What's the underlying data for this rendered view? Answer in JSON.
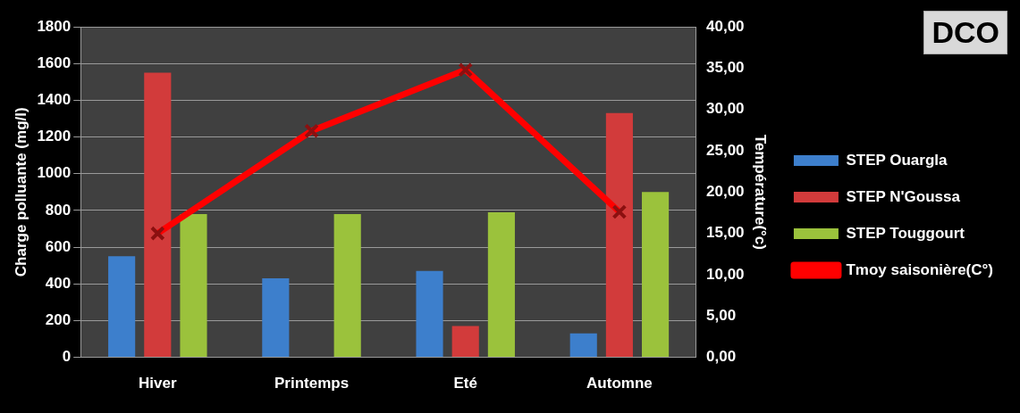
{
  "chart_data": {
    "type": "bar",
    "title": "DCO",
    "ylabel": "Charge polluante (mg/l)",
    "y2label": "Température(°c)",
    "categories": [
      "Hiver",
      "Printemps",
      "Eté",
      "Automne"
    ],
    "series": [
      {
        "name": "STEP Ouargla",
        "color": "#3d7fcc",
        "values": [
          550,
          430,
          470,
          130
        ]
      },
      {
        "name": "STEP N'Goussa",
        "color": "#d23b3b",
        "values": [
          1550,
          null,
          170,
          1330
        ]
      },
      {
        "name": "STEP Touggourt",
        "color": "#9bc23c",
        "values": [
          780,
          780,
          790,
          900
        ]
      },
      {
        "name": "Tmoy saisonière(C°)",
        "type": "line",
        "axis": "y2",
        "color": "#ff0000",
        "marker": "cross",
        "values": [
          15.0,
          27.4,
          34.8,
          17.6
        ]
      }
    ],
    "ylim": [
      0,
      1800
    ],
    "yticks": [
      0,
      200,
      400,
      600,
      800,
      1000,
      1200,
      1400,
      1600,
      1800
    ],
    "y2lim": [
      0,
      40
    ],
    "y2ticks": [
      {
        "value": 0,
        "label": "0,00"
      },
      {
        "value": 5,
        "label": "5,00"
      },
      {
        "value": 10,
        "label": "10,00"
      },
      {
        "value": 15,
        "label": "15,00"
      },
      {
        "value": 20,
        "label": "20,00"
      },
      {
        "value": 25,
        "label": "25,00"
      },
      {
        "value": 30,
        "label": "30,00"
      },
      {
        "value": 35,
        "label": "35,00"
      },
      {
        "value": 40,
        "label": "40,00"
      }
    ],
    "grid": "y",
    "legend": "right"
  }
}
